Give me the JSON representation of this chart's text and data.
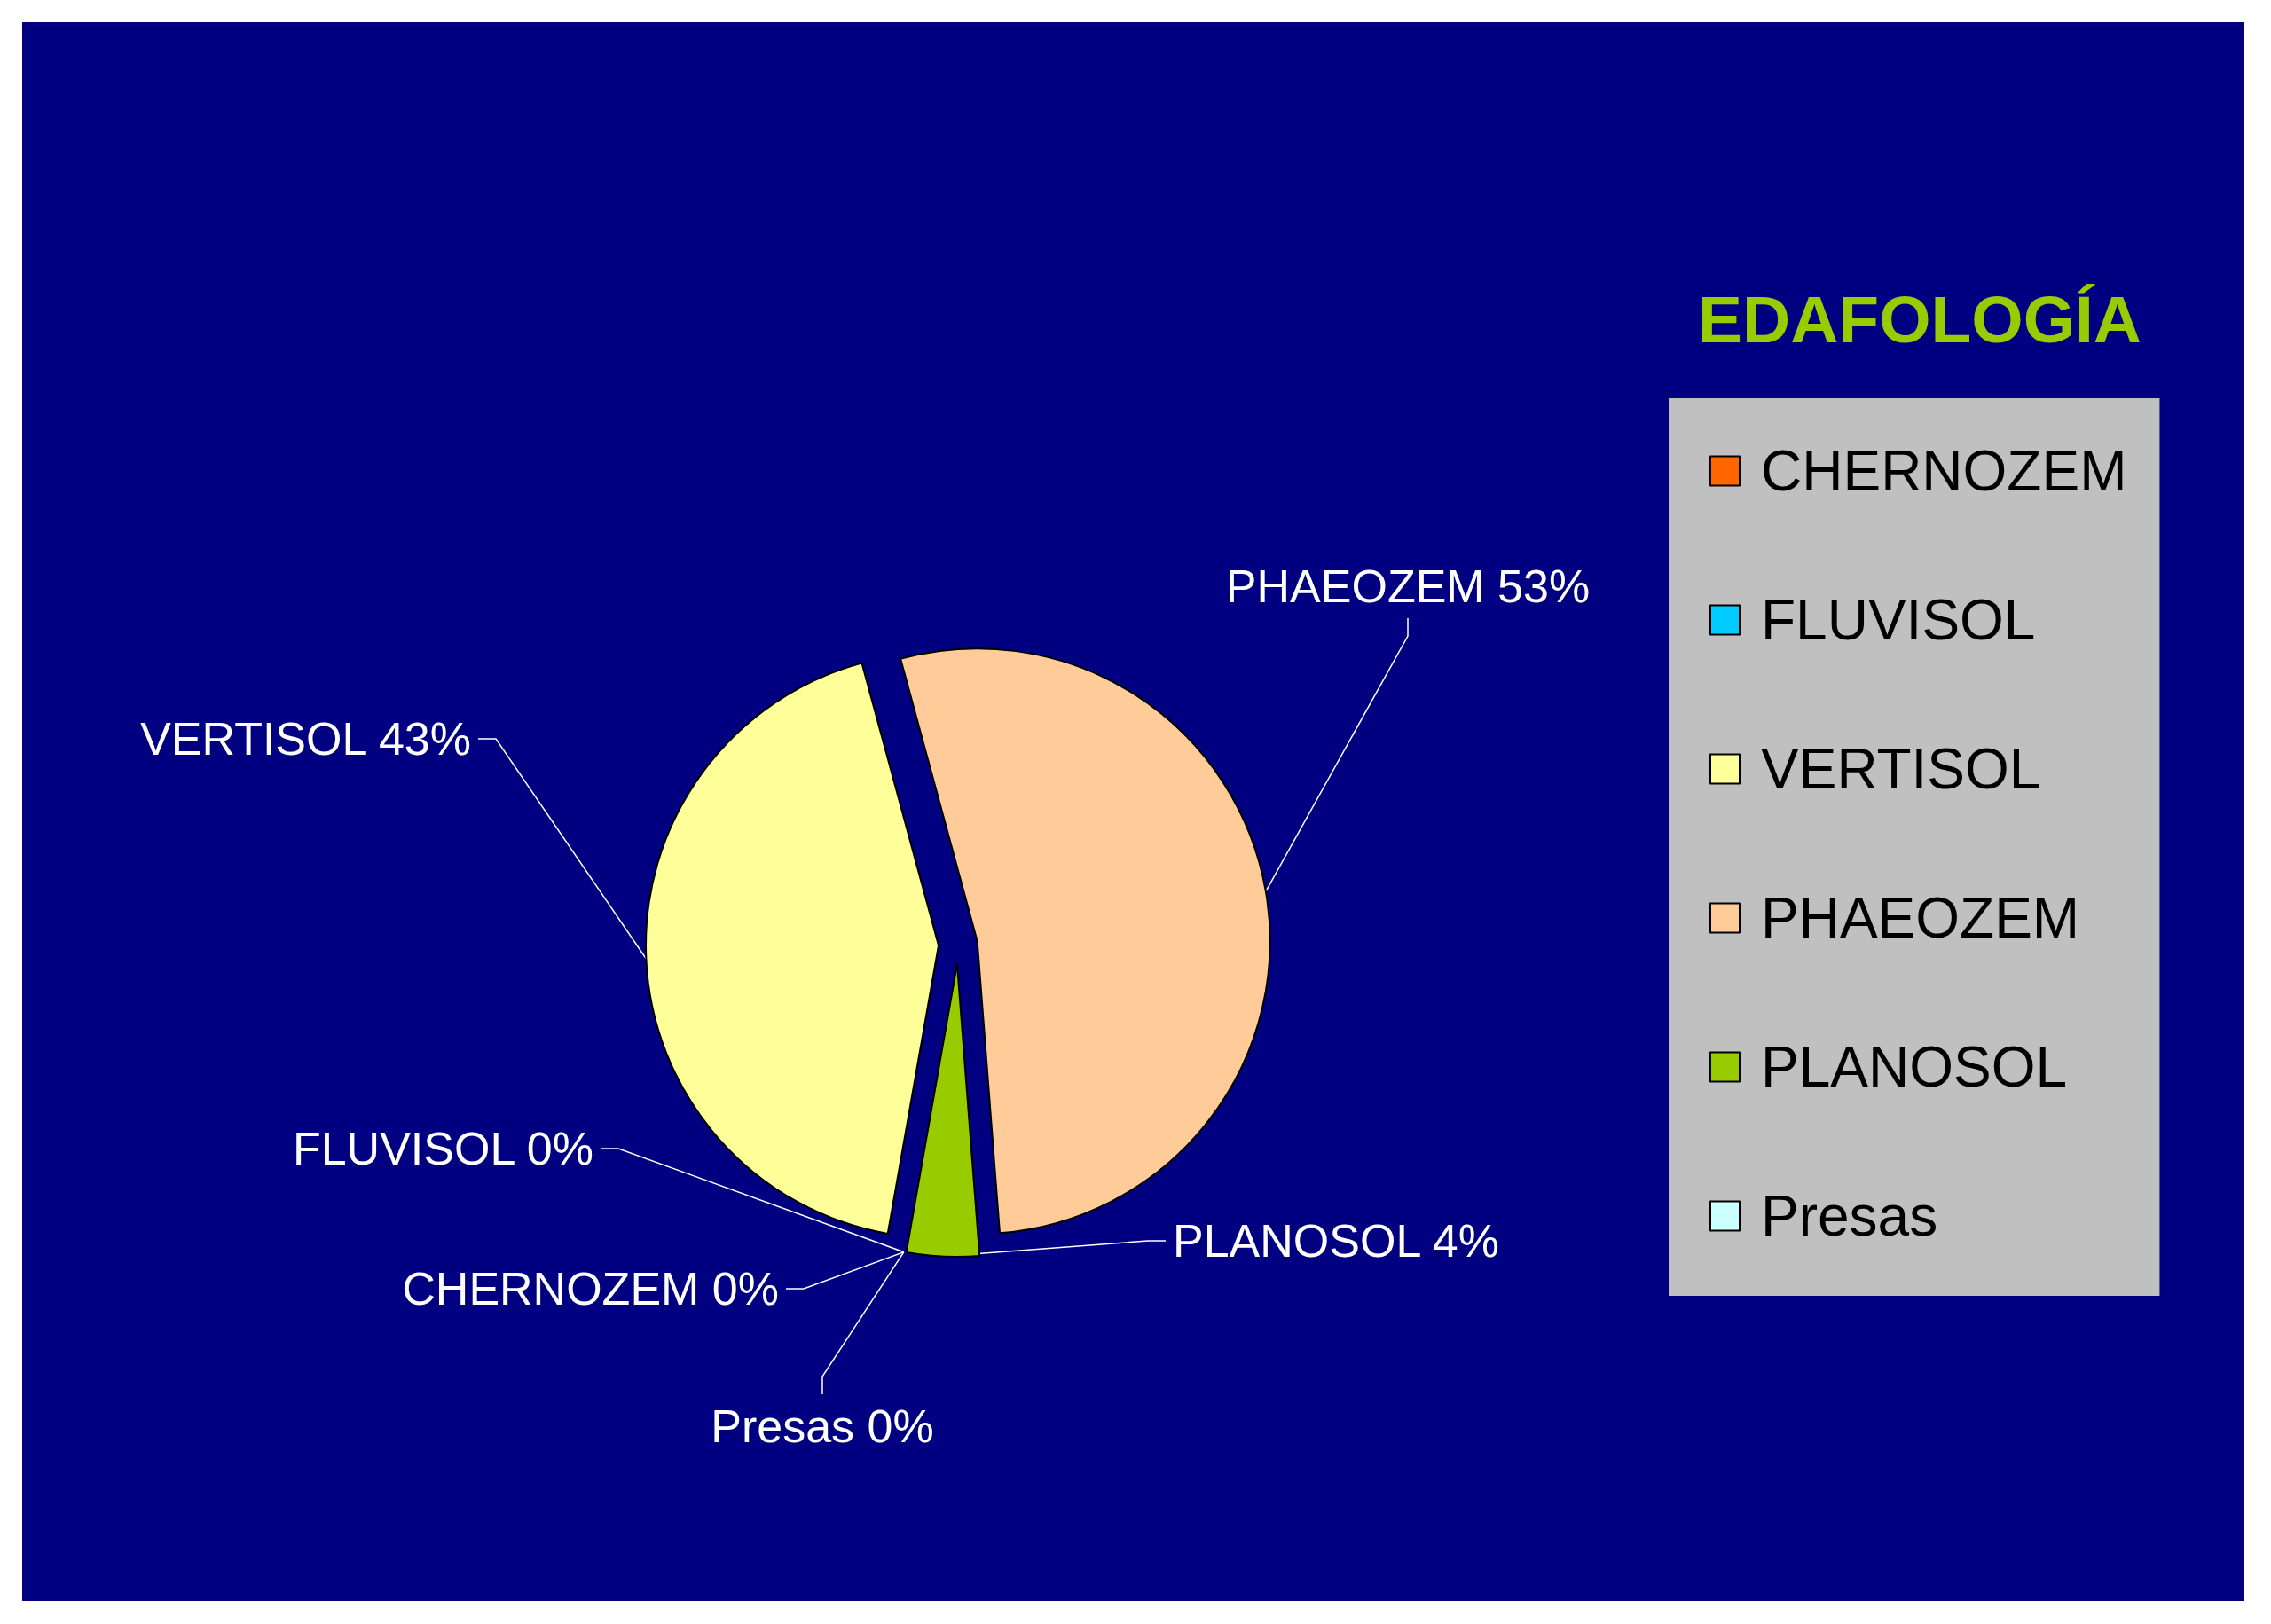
{
  "chart_data": {
    "type": "pie",
    "title": "EDAFOLOGÍA",
    "categories": [
      "CHERNOZEM",
      "FLUVISOL",
      "VERTISOL",
      "PHAEOZEM",
      "PLANOSOL",
      "Presas"
    ],
    "values": [
      0,
      0,
      43,
      53,
      4,
      0
    ],
    "colors": [
      "#ff6600",
      "#00ccff",
      "#ffff99",
      "#ffcc99",
      "#99cc00",
      "#ccffff"
    ],
    "value_labels": [
      "0%",
      "0%",
      "43%",
      "53%",
      "4%",
      "0%"
    ],
    "legend": "right"
  }
}
